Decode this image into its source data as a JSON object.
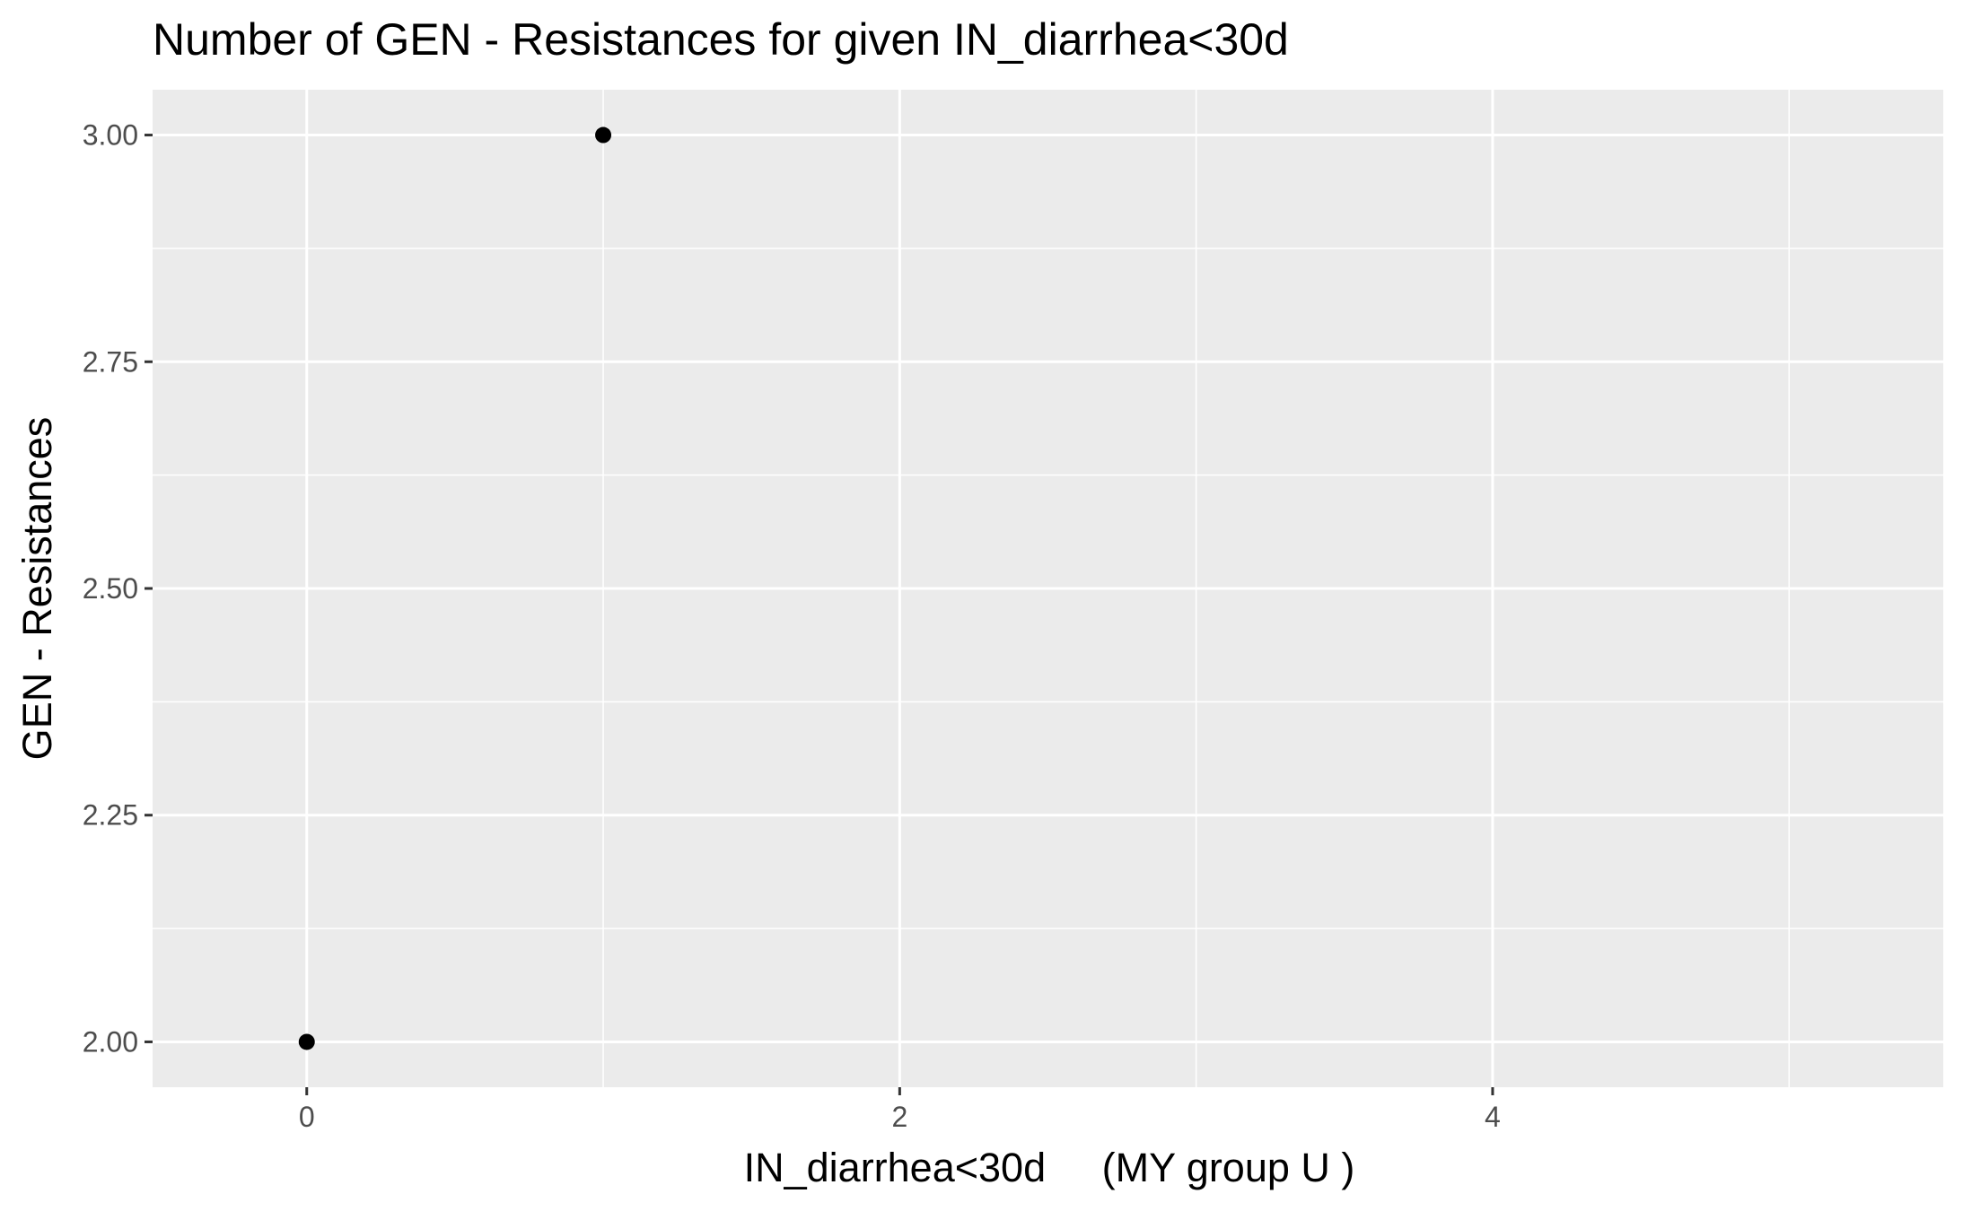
{
  "chart_data": {
    "type": "scatter",
    "title": "Number of GEN - Resistances for given IN_diarrhea<30d",
    "xlabel": "IN_diarrhea<30d     (MY group U )",
    "ylabel": "GEN - Resistances",
    "points": [
      {
        "x": 0,
        "y": 2
      },
      {
        "x": 1,
        "y": 3
      }
    ],
    "xlim": [
      -0.52,
      5.52
    ],
    "ylim": [
      1.95,
      3.05
    ],
    "x_ticks": [
      0,
      2,
      4
    ],
    "x_tick_labels": [
      "0",
      "2",
      "4"
    ],
    "x_minor_breaks": [
      1,
      3,
      5
    ],
    "y_ticks": [
      2.0,
      2.25,
      2.5,
      2.75,
      3.0
    ],
    "y_tick_labels": [
      "2.00",
      "2.25",
      "2.50",
      "2.75",
      "3.00"
    ],
    "y_minor_breaks": [
      2.125,
      2.375,
      2.625,
      2.875
    ],
    "grid": true,
    "legend": "none",
    "colors": {
      "panel": "#ebebeb",
      "grid": "#ffffff",
      "point": "#000000",
      "tick_text": "#4d4d4d",
      "tick_mark": "#333333"
    }
  }
}
